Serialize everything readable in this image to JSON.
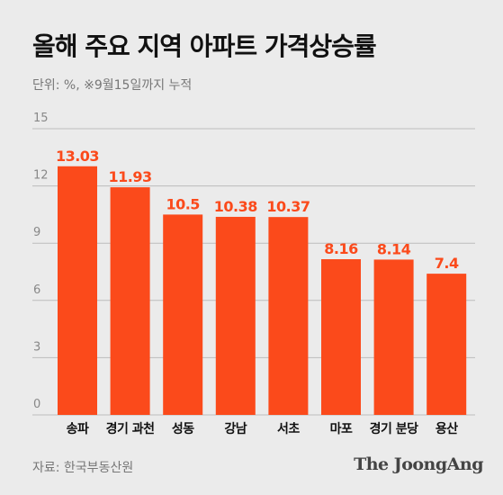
{
  "header": {
    "title": "올해 주요 지역 아파트 가격상승률",
    "subtitle": "단위: %, ※9월15일까지 누적"
  },
  "footer": {
    "source": "자료: 한국부동산원",
    "brand": "The JoongAng"
  },
  "colors": {
    "bar": "#fb4a1b",
    "label": "#fb4a1b",
    "grid": "#bdbdbd",
    "tick": "#888888",
    "category": "#111111"
  },
  "chart_data": {
    "type": "bar",
    "categories": [
      "송파",
      "경기 과천",
      "성동",
      "강남",
      "서초",
      "마포",
      "경기 분당",
      "용산"
    ],
    "values": [
      13.03,
      11.93,
      10.5,
      10.38,
      10.37,
      8.16,
      8.14,
      7.4
    ],
    "value_labels": [
      "13.03",
      "11.93",
      "10.5",
      "10.38",
      "10.37",
      "8.16",
      "8.14",
      "7.4"
    ],
    "yticks": [
      0,
      3,
      6,
      9,
      12,
      15
    ],
    "ylim": [
      0,
      15
    ],
    "title": "올해 주요 지역 아파트 가격상승률",
    "xlabel": "",
    "ylabel": "",
    "grid": true
  }
}
